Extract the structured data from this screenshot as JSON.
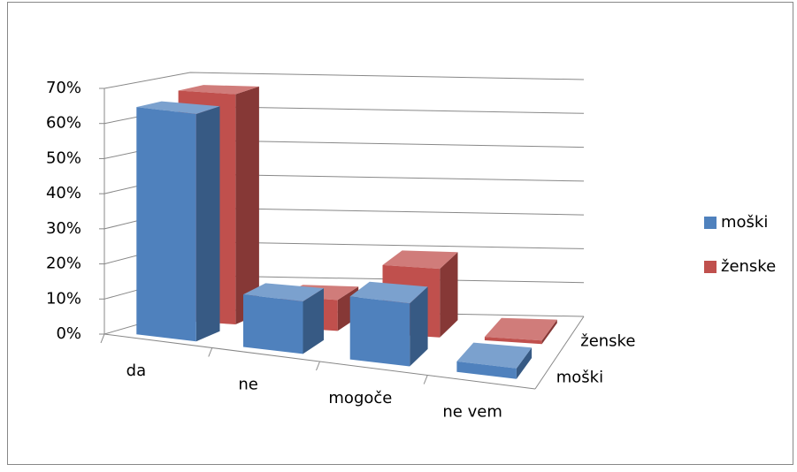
{
  "chart_data": {
    "type": "bar3d",
    "categories": [
      "da",
      "ne",
      "mogoče",
      "ne vem"
    ],
    "series": [
      {
        "name": "moški",
        "color": "#4f81bd",
        "values": [
          65,
          15,
          18,
          3
        ]
      },
      {
        "name": "ženske",
        "color": "#c0504d",
        "values": [
          67,
          9,
          20,
          1
        ]
      }
    ],
    "ylim": [
      0,
      70
    ],
    "yticks": [
      {
        "value": 0,
        "label": "0%"
      },
      {
        "value": 10,
        "label": "10%"
      },
      {
        "value": 20,
        "label": "20%"
      },
      {
        "value": 30,
        "label": "30%"
      },
      {
        "value": 40,
        "label": "40%"
      },
      {
        "value": 50,
        "label": "50%"
      },
      {
        "value": 60,
        "label": "60%"
      },
      {
        "value": 70,
        "label": "70%"
      }
    ],
    "grid": true,
    "legend": "right"
  }
}
